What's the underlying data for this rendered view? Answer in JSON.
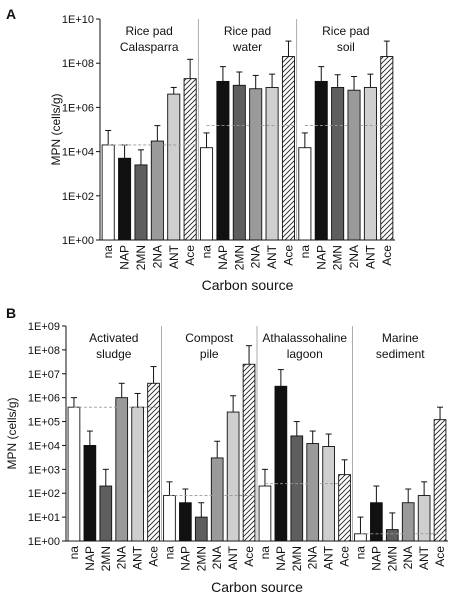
{
  "chart_data": [
    {
      "panel_label": "A",
      "type": "bar",
      "ylabel": "MPN (cells/g)",
      "xlabel": "Carbon source",
      "yscale": "log",
      "ylim": [
        1,
        10000000000
      ],
      "yticks": [
        {
          "value": 1,
          "label": "1E+00"
        },
        {
          "value": 100,
          "label": "1E+02"
        },
        {
          "value": 10000,
          "label": "1E+04"
        },
        {
          "value": 1000000,
          "label": "1E+06"
        },
        {
          "value": 100000000,
          "label": "1E+08"
        },
        {
          "value": 10000000000,
          "label": "1E+10"
        }
      ],
      "categories": [
        "na",
        "NAP",
        "2MN",
        "2NA",
        "ANT",
        "Ace"
      ],
      "bar_styles": [
        {
          "fill": "#ffffff",
          "hatch": false
        },
        {
          "fill": "#111111",
          "hatch": false
        },
        {
          "fill": "#5e5e5e",
          "hatch": false
        },
        {
          "fill": "#9a9a9a",
          "hatch": false
        },
        {
          "fill": "#cfcfcf",
          "hatch": false
        },
        {
          "fill": "#ffffff",
          "hatch": true
        }
      ],
      "groups": [
        {
          "label": [
            "Rice pad",
            "Calasparra"
          ],
          "values": [
            20000,
            5000,
            2500,
            30000,
            4000000,
            20000000
          ],
          "errors": [
            90000,
            20000,
            12000,
            150000,
            8000000,
            150000000
          ],
          "reference": 20000
        },
        {
          "label": [
            "Rice pad",
            "water"
          ],
          "values": [
            15000,
            15000000,
            10000000,
            7000000,
            8000000,
            200000000
          ],
          "errors": [
            70000,
            70000000,
            40000000,
            28000000,
            32000000,
            1000000000
          ],
          "reference": 150000
        },
        {
          "label": [
            "Rice pad",
            "soil"
          ],
          "values": [
            15000,
            15000000,
            8000000,
            6000000,
            8000000,
            200000000
          ],
          "errors": [
            70000,
            70000000,
            30000000,
            25000000,
            32000000,
            1000000000
          ],
          "reference": 150000
        }
      ]
    },
    {
      "panel_label": "B",
      "type": "bar",
      "ylabel": "MPN (cells/g)",
      "xlabel": "Carbon source",
      "yscale": "log",
      "ylim": [
        1,
        1000000000
      ],
      "yticks": [
        {
          "value": 1,
          "label": "1E+00"
        },
        {
          "value": 10,
          "label": "1E+01"
        },
        {
          "value": 100,
          "label": "1E+02"
        },
        {
          "value": 1000,
          "label": "1E+03"
        },
        {
          "value": 10000,
          "label": "1E+04"
        },
        {
          "value": 100000,
          "label": "1E+05"
        },
        {
          "value": 1000000,
          "label": "1E+06"
        },
        {
          "value": 10000000,
          "label": "1E+07"
        },
        {
          "value": 100000000,
          "label": "1E+08"
        },
        {
          "value": 1000000000,
          "label": "1E+09"
        }
      ],
      "categories": [
        "na",
        "NAP",
        "2MN",
        "2NA",
        "ANT",
        "Ace"
      ],
      "bar_styles": [
        {
          "fill": "#ffffff",
          "hatch": false
        },
        {
          "fill": "#111111",
          "hatch": false
        },
        {
          "fill": "#5e5e5e",
          "hatch": false
        },
        {
          "fill": "#9a9a9a",
          "hatch": false
        },
        {
          "fill": "#cfcfcf",
          "hatch": false
        },
        {
          "fill": "#ffffff",
          "hatch": true
        }
      ],
      "groups": [
        {
          "label": [
            "Activated",
            "sludge"
          ],
          "values": [
            400000,
            10000,
            200,
            1000000,
            400000,
            4000000
          ],
          "errors": [
            1000000,
            40000,
            1000,
            4000000,
            1500000,
            20000000
          ],
          "reference": 400000
        },
        {
          "label": [
            "Compost",
            "pile"
          ],
          "values": [
            80,
            40,
            10,
            3000,
            250000,
            25000000
          ],
          "errors": [
            300,
            150,
            40,
            15000,
            1200000,
            150000000
          ],
          "reference": 80
        },
        {
          "label": [
            "Athalassohaline",
            "lagoon"
          ],
          "values": [
            200,
            3000000,
            25000,
            12000,
            9000,
            600
          ],
          "errors": [
            1000,
            15000000,
            100000,
            40000,
            30000,
            2500
          ],
          "reference": 250
        },
        {
          "label": [
            "Marine",
            "sediment"
          ],
          "values": [
            2,
            40,
            3,
            40,
            80,
            120000
          ],
          "errors": [
            10,
            200,
            15,
            150,
            300,
            400000
          ],
          "reference": 2
        }
      ]
    }
  ]
}
